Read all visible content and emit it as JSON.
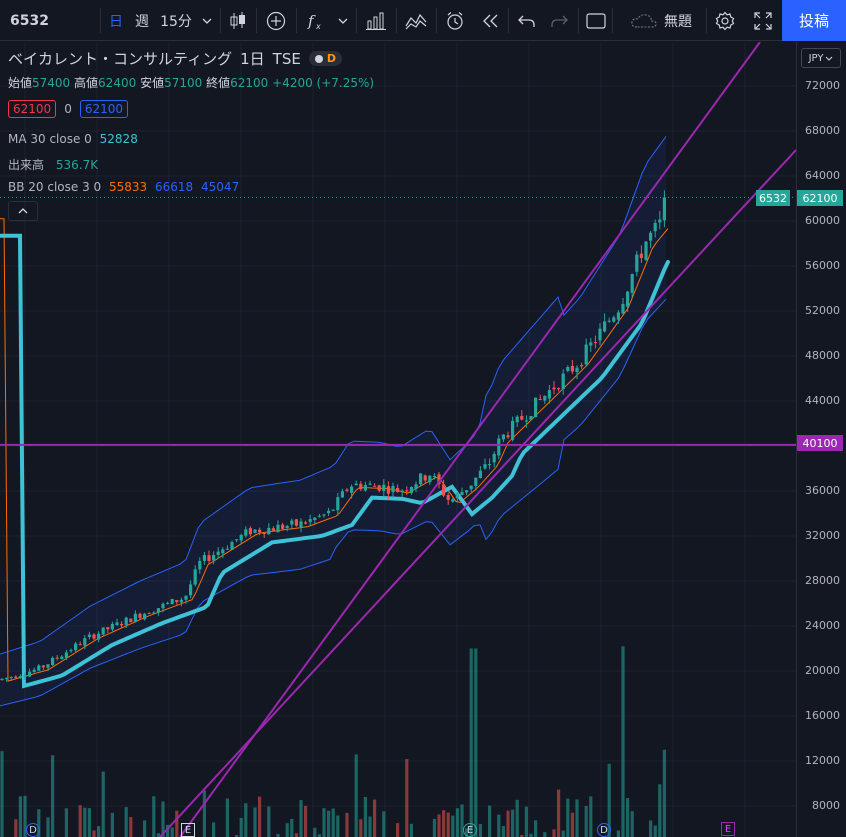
{
  "toolbar": {
    "symbol": "6532",
    "interval_day": "日",
    "interval_week": "週",
    "interval_15m": "15分",
    "layout_name": "無題",
    "post_label": "投稿"
  },
  "legend": {
    "name": "ベイカレント・コンサルティング",
    "timeframe": "1日",
    "exchange": "TSE",
    "badge": "D",
    "open_label": "始値",
    "open": "57400",
    "high_label": "高値",
    "high": "62400",
    "low_label": "安値",
    "low": "57100",
    "close_label": "終値",
    "close": "62100",
    "change": "+4200 (+7.25%)",
    "bid": "62100",
    "spread": "0",
    "ask": "62100",
    "ma_label": "MA 30 close 0",
    "ma_value": "52828",
    "volume_label": "出来高",
    "volume_value": "536.7K",
    "bb_label": "BB 20 close 3 0",
    "bb_basis": "55833",
    "bb_upper": "66618",
    "bb_lower": "45047"
  },
  "axis": {
    "currency": "JPY",
    "ticks": [
      "72000",
      "68000",
      "64000",
      "60000",
      "56000",
      "52000",
      "48000",
      "44000",
      "40000",
      "36000",
      "32000",
      "28000",
      "24000",
      "20000",
      "16000",
      "12000",
      "8000"
    ],
    "symbol_tag": "6532",
    "price_tag": "62100",
    "hline_tag": "40100"
  },
  "markers": {
    "d": "D",
    "e": "E"
  },
  "colors": {
    "up": "#26a69a",
    "down": "#ef5350",
    "ma": "#3fc1d6",
    "bb_basis": "#ff6d00",
    "bb_band": "#2962ff",
    "drawing": "#9c27b0",
    "accent": "#2962ff"
  },
  "chart_data": {
    "type": "candlestick",
    "symbol": "6532",
    "interval": "1日",
    "y_range": [
      6000,
      74000
    ],
    "last": {
      "open": 57400,
      "high": 62400,
      "low": 57100,
      "close": 62100
    },
    "horizontal_line": 40100,
    "indicators": {
      "MA30": 52828,
      "BB_basis": 55833,
      "BB_upper": 66618,
      "BB_lower": 45047,
      "volume": "536.7K"
    }
  }
}
